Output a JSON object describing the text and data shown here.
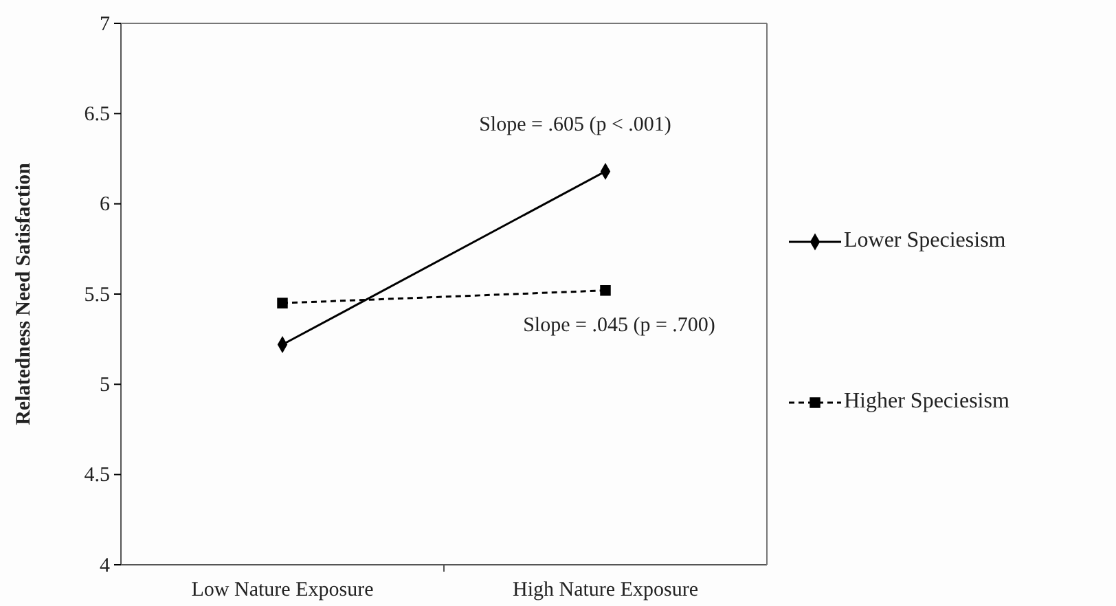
{
  "chart_data": {
    "type": "line",
    "ylabel": "Relatedness Need Satisfaction",
    "categories": [
      "Low Nature Exposure",
      "High Nature Exposure"
    ],
    "series": [
      {
        "name": "Lower Speciesism",
        "color": "#000000",
        "values": [
          5.22,
          6.18
        ],
        "marker": "diamond",
        "line_style": "solid"
      },
      {
        "name": "Higher Speciesism",
        "color": "#000000",
        "values": [
          5.45,
          5.52
        ],
        "marker": "square",
        "line_style": "dashed"
      }
    ],
    "ylim": [
      4,
      7
    ],
    "yticks": [
      4,
      4.5,
      5,
      5.5,
      6,
      6.5,
      7
    ],
    "grid": false,
    "legend": "right",
    "annotations": [
      "Slope = .605 (p < .001)",
      "Slope = .045 (p = .700)"
    ]
  }
}
